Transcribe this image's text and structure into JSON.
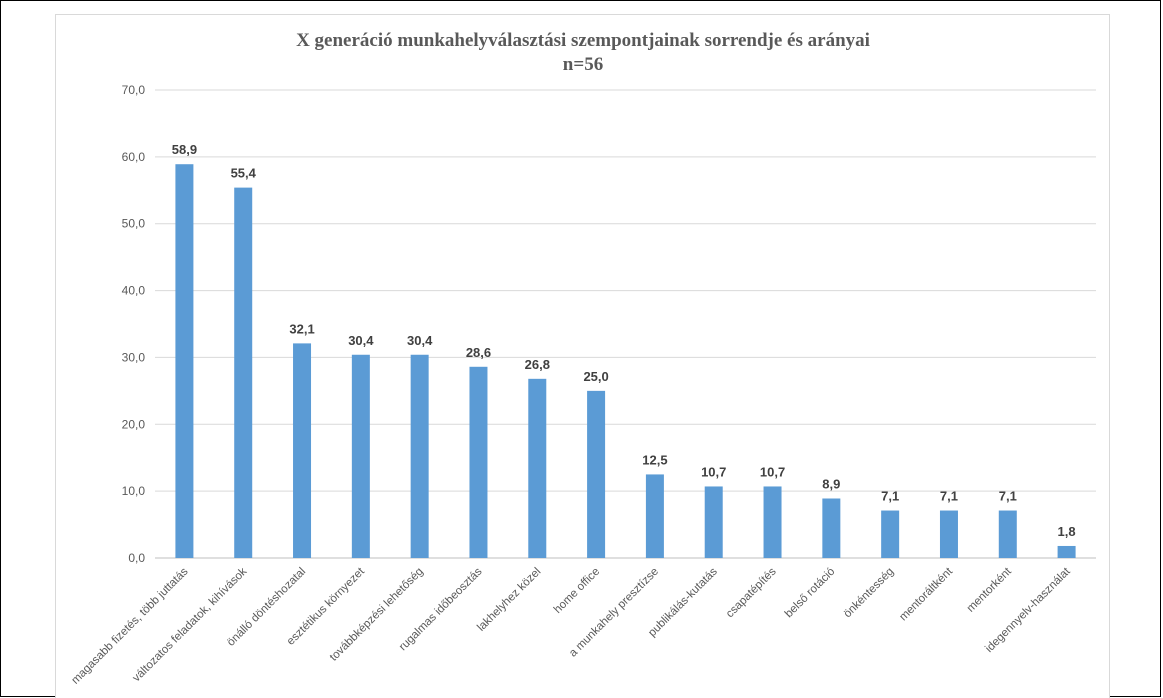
{
  "chart_data": {
    "type": "bar",
    "title": "X generáció munkahelyválasztási szempontjainak sorrendje és arányai",
    "subtitle": "n=56",
    "xlabel": "",
    "ylabel": "",
    "ylim": [
      0,
      70
    ],
    "yticks": [
      "0,0",
      "10,0",
      "20,0",
      "30,0",
      "40,0",
      "50,0",
      "60,0",
      "70,0"
    ],
    "grid": true,
    "bar_color": "#5b9bd5",
    "categories": [
      "magasabb fizetés, több juttatás",
      "változatos feladatok, kihívások",
      "önálló döntéshozatal",
      "esztétikus környezet",
      "továbbképzési lehetőség",
      "rugalmas időbeosztás",
      "lakhelyhez közel",
      "home office",
      "a munkahely presztízse",
      "publikálás-kutatás",
      "csapatépítés",
      "belső rotáció",
      "önkéntesség",
      "mentoráltként",
      "mentorként",
      "idegennyelv-használat"
    ],
    "values": [
      58.9,
      55.4,
      32.1,
      30.4,
      30.4,
      28.6,
      26.8,
      25.0,
      12.5,
      10.7,
      10.7,
      8.9,
      7.1,
      7.1,
      7.1,
      1.8
    ],
    "data_labels": [
      "58,9",
      "55,4",
      "32,1",
      "30,4",
      "30,4",
      "28,6",
      "26,8",
      "25,0",
      "12,5",
      "10,7",
      "10,7",
      "8,9",
      "7,1",
      "7,1",
      "7,1",
      "1,8"
    ]
  }
}
